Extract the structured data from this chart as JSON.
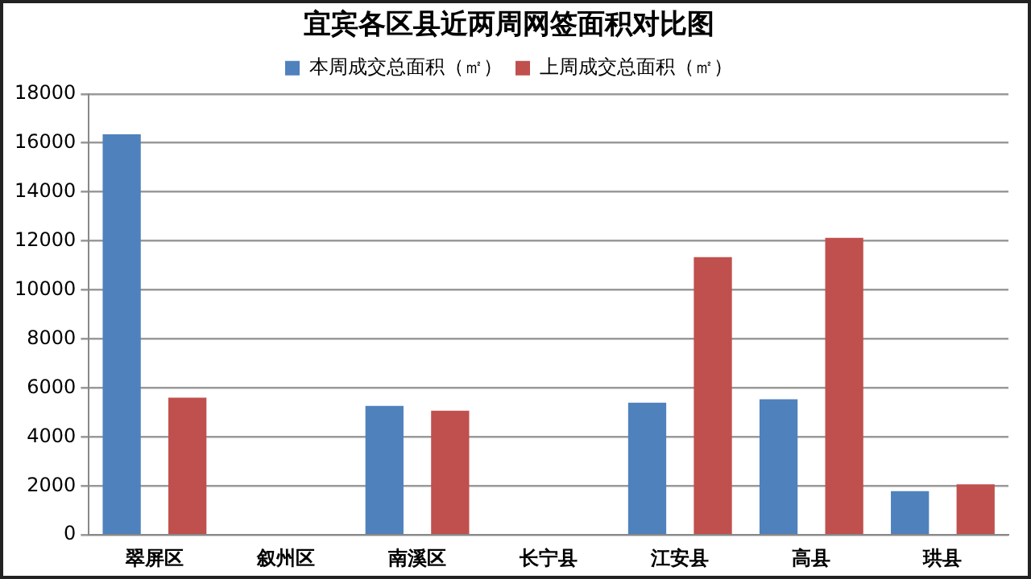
{
  "chart_data": {
    "type": "bar",
    "title": "宜宾各区县近两周网签面积对比图",
    "categories": [
      "翠屏区",
      "叙州区",
      "南溪区",
      "长宁县",
      "江安县",
      "高县",
      "珙县"
    ],
    "series": [
      {
        "name": "本周成交总面积（㎡）",
        "color": "#4f81bd",
        "values": [
          16350,
          null,
          5270,
          null,
          5400,
          5540,
          1790
        ]
      },
      {
        "name": "上周成交总面积（㎡）",
        "color": "#c0504d",
        "values": [
          5600,
          null,
          5070,
          null,
          11340,
          12130,
          2070
        ]
      }
    ],
    "ylim": [
      0,
      18000
    ],
    "yticks": [
      0,
      2000,
      4000,
      6000,
      8000,
      10000,
      12000,
      14000,
      16000,
      18000
    ],
    "grid": "y",
    "legend": "top"
  }
}
